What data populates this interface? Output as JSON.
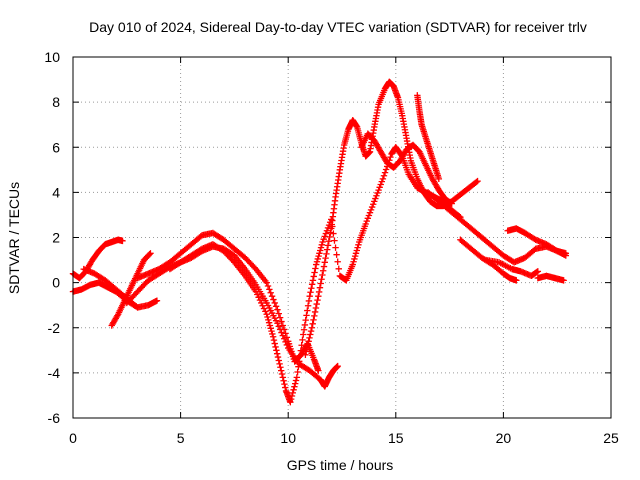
{
  "chart_data": {
    "type": "scatter",
    "title": "Day 010 of 2024, Sidereal Day-to-day VTEC variation (SDTVAR) for receiver trlv",
    "xlabel": "GPS time / hours",
    "ylabel": "SDTVAR / TECUs",
    "xlim": [
      0,
      25
    ],
    "ylim": [
      -6,
      10
    ],
    "xticks": [
      0,
      5,
      10,
      15,
      20,
      25
    ],
    "yticks": [
      -6,
      -4,
      -2,
      0,
      2,
      4,
      6,
      8,
      10
    ],
    "grid": true,
    "marker": "+",
    "color": "#ff0000",
    "series": [
      {
        "x": [
          0.0,
          0.3,
          0.6,
          0.9,
          1.2,
          1.5,
          1.8,
          2.1,
          2.3
        ],
        "y": [
          0.4,
          0.2,
          0.5,
          1.0,
          1.4,
          1.7,
          1.8,
          1.9,
          1.85
        ]
      },
      {
        "x": [
          0.0,
          0.4,
          0.8,
          1.2,
          1.6,
          2.0,
          2.5,
          3.0,
          3.5,
          3.9
        ],
        "y": [
          -0.4,
          -0.3,
          -0.1,
          0.0,
          -0.2,
          -0.4,
          -0.8,
          -1.1,
          -1.0,
          -0.8
        ]
      },
      {
        "x": [
          0.5,
          1.0,
          1.5,
          2.0,
          2.5,
          3.0
        ],
        "y": [
          0.6,
          0.4,
          0.1,
          -0.3,
          -0.7,
          -1.1
        ]
      },
      {
        "x": [
          1.8,
          2.1,
          2.4,
          2.7,
          3.0,
          3.3,
          3.6
        ],
        "y": [
          -1.9,
          -1.4,
          -0.8,
          -0.2,
          0.4,
          1.0,
          1.3
        ]
      },
      {
        "x": [
          2.5,
          3.0,
          3.5,
          4.0,
          4.5,
          5.0,
          5.5,
          6.0,
          6.5,
          7.0,
          7.5,
          8.0,
          8.5,
          9.0,
          9.5,
          10.0,
          10.5,
          11.0,
          11.5
        ],
        "y": [
          -0.9,
          -0.4,
          0.1,
          0.4,
          0.7,
          0.9,
          1.1,
          1.4,
          1.6,
          1.5,
          1.2,
          0.6,
          -0.1,
          -0.9,
          -1.8,
          -2.9,
          -3.6,
          -3.9,
          -4.3
        ]
      },
      {
        "x": [
          3.0,
          3.5,
          4.0,
          4.5,
          5.0,
          5.5,
          6.0,
          6.5,
          7.0,
          7.5,
          8.0,
          8.5,
          9.0,
          9.5,
          10.0,
          10.3,
          10.6,
          10.9,
          11.2,
          11.4
        ],
        "y": [
          0.2,
          0.4,
          0.6,
          0.9,
          1.3,
          1.7,
          2.1,
          2.2,
          1.9,
          1.5,
          1.1,
          0.6,
          0.0,
          -1.2,
          -2.6,
          -3.5,
          -3.2,
          -2.7,
          -3.4,
          -3.9
        ]
      },
      {
        "x": [
          4.5,
          5.0,
          5.5,
          6.0,
          6.5,
          7.0,
          7.5,
          8.0,
          8.5,
          9.0,
          9.3,
          9.6,
          9.9,
          10.1,
          10.4,
          10.7,
          11.0,
          11.3,
          11.6,
          12.0,
          12.4,
          12.7,
          13.0,
          13.3,
          13.6,
          14.0,
          14.4,
          14.8,
          15.0,
          15.3,
          15.6,
          16.0,
          16.4,
          16.8,
          17.2,
          17.6,
          18.0
        ],
        "y": [
          0.6,
          0.9,
          1.2,
          1.5,
          1.7,
          1.4,
          0.9,
          0.3,
          -0.4,
          -1.4,
          -2.4,
          -3.6,
          -4.8,
          -5.3,
          -4.2,
          -2.3,
          -0.6,
          0.8,
          1.8,
          2.8,
          0.3,
          0.1,
          0.8,
          1.8,
          2.6,
          3.6,
          4.6,
          5.7,
          6.0,
          5.6,
          4.8,
          4.2,
          4.0,
          3.8,
          3.6,
          3.2,
          2.9
        ]
      },
      {
        "x": [
          10.8,
          11.1,
          11.4,
          11.7,
          12.0,
          12.2,
          12.4,
          12.6,
          12.8,
          13.0,
          13.2,
          13.4,
          13.6,
          13.8,
          14.0,
          14.2,
          14.5,
          14.7,
          14.9,
          15.1,
          15.3,
          15.5,
          15.7,
          16.0,
          16.3,
          16.6,
          16.9,
          17.2,
          17.6,
          18.0,
          18.4,
          18.8
        ],
        "y": [
          -3.2,
          -2.0,
          -0.6,
          0.9,
          2.4,
          3.8,
          5.0,
          6.1,
          6.8,
          7.2,
          6.9,
          6.2,
          5.6,
          5.8,
          6.9,
          7.9,
          8.6,
          8.9,
          8.7,
          8.2,
          7.4,
          6.4,
          5.4,
          4.6,
          4.0,
          3.6,
          3.4,
          3.4,
          3.6,
          3.9,
          4.2,
          4.5
        ]
      },
      {
        "x": [
          13.4,
          13.7,
          14.0,
          14.3,
          14.6,
          14.9,
          15.2,
          15.5,
          15.8,
          16.1,
          16.4,
          16.7,
          17.0,
          17.3,
          17.6
        ],
        "y": [
          6.0,
          6.6,
          6.3,
          5.8,
          5.3,
          5.1,
          5.4,
          5.9,
          6.1,
          5.8,
          5.2,
          4.6,
          4.1,
          3.7,
          3.5
        ]
      },
      {
        "x": [
          16.0,
          16.1,
          16.2,
          16.4,
          16.6,
          16.8,
          17.0
        ],
        "y": [
          8.3,
          7.6,
          7.0,
          6.4,
          5.8,
          5.2,
          4.6
        ]
      },
      {
        "x": [
          16.5,
          17.0,
          17.5,
          18.0,
          18.5,
          19.0,
          19.5,
          20.0,
          20.5,
          21.0,
          21.5,
          22.0,
          22.5,
          22.9
        ],
        "y": [
          4.0,
          3.6,
          3.2,
          2.8,
          2.4,
          2.0,
          1.6,
          1.2,
          0.9,
          1.1,
          1.5,
          1.6,
          1.4,
          1.2
        ]
      },
      {
        "x": [
          18.0,
          18.5,
          19.0,
          19.5,
          20.0,
          20.3,
          20.6
        ],
        "y": [
          1.9,
          1.5,
          1.1,
          0.8,
          0.4,
          0.2,
          0.1
        ]
      },
      {
        "x": [
          19.2,
          19.8,
          20.4,
          20.8,
          21.3,
          21.6
        ],
        "y": [
          1.0,
          0.9,
          0.6,
          0.5,
          0.3,
          0.5
        ]
      },
      {
        "x": [
          20.2,
          20.6,
          21.0,
          21.5,
          22.0,
          22.5,
          22.9
        ],
        "y": [
          2.3,
          2.4,
          2.2,
          1.9,
          1.7,
          1.4,
          1.3
        ]
      },
      {
        "x": [
          21.6,
          22.0,
          22.4,
          22.8
        ],
        "y": [
          0.2,
          0.3,
          0.2,
          0.1
        ]
      },
      {
        "x": [
          11.5,
          11.7,
          11.9,
          12.1,
          12.3
        ],
        "y": [
          -4.3,
          -4.6,
          -4.2,
          -3.9,
          -3.7
        ]
      }
    ]
  }
}
